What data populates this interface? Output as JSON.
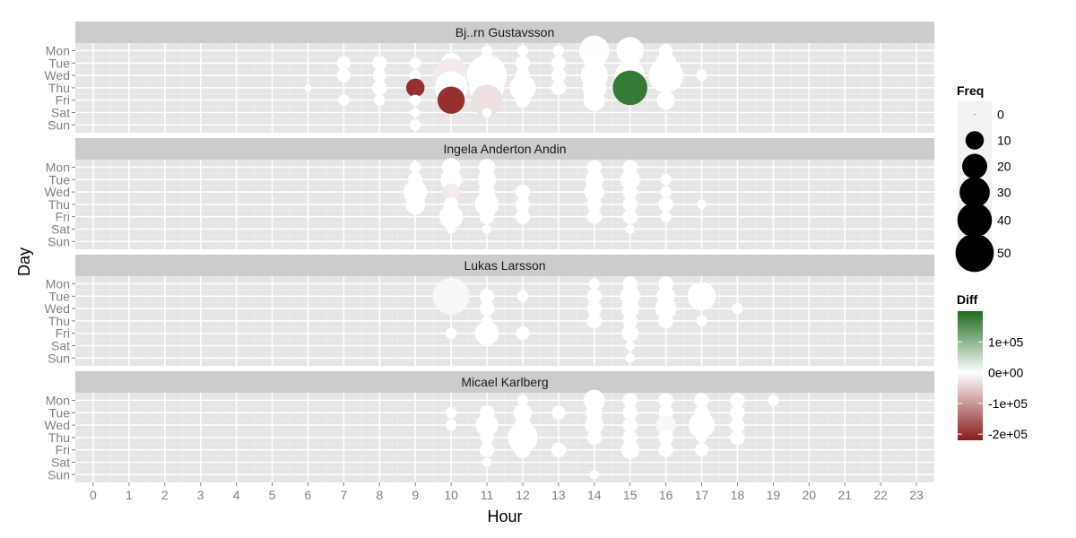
{
  "chart_data": {
    "type": "scatter",
    "title": "",
    "xlabel": "Hour",
    "ylabel": "Day",
    "x_ticks": [
      "0",
      "1",
      "2",
      "3",
      "4",
      "5",
      "6",
      "7",
      "8",
      "9",
      "10",
      "11",
      "12",
      "13",
      "14",
      "15",
      "16",
      "17",
      "18",
      "19",
      "20",
      "21",
      "22",
      "23"
    ],
    "y_ticks": [
      "Mon",
      "Tue",
      "Wed",
      "Thu",
      "Fri",
      "Sat",
      "Sun"
    ],
    "xlim": [
      -0.5,
      23.5
    ],
    "grid": true,
    "legend_position": "right",
    "size_legend": {
      "title": "Freq",
      "values": [
        0,
        10,
        20,
        30,
        40,
        50
      ],
      "labels": [
        "0",
        "10",
        "20",
        "30",
        "40",
        "50"
      ]
    },
    "color_legend": {
      "title": "Diff",
      "ticks": [
        100000,
        0,
        -100000,
        -200000
      ],
      "labels": [
        "1e+05",
        "0e+00",
        "-1e+05",
        "-2e+05"
      ],
      "low_color": "#8b1a1a",
      "mid_color": "#ffffff",
      "high_color": "#1e6b1e",
      "min": -220000,
      "max": 200000
    },
    "panels": [
      {
        "title": "Bj..rn Gustavsson",
        "points": [
          {
            "day": "Mon",
            "hour": 11,
            "freq": 3,
            "diff": 0
          },
          {
            "day": "Mon",
            "hour": 12,
            "freq": 3,
            "diff": 0
          },
          {
            "day": "Mon",
            "hour": 13,
            "freq": 3,
            "diff": 0
          },
          {
            "day": "Mon",
            "hour": 14,
            "freq": 30,
            "diff": 2000
          },
          {
            "day": "Mon",
            "hour": 15,
            "freq": 24,
            "diff": 0
          },
          {
            "day": "Mon",
            "hour": 16,
            "freq": 5,
            "diff": 0
          },
          {
            "day": "Tue",
            "hour": 7,
            "freq": 5,
            "diff": 0
          },
          {
            "day": "Tue",
            "hour": 8,
            "freq": 6,
            "diff": 0
          },
          {
            "day": "Tue",
            "hour": 9,
            "freq": 3,
            "diff": 0
          },
          {
            "day": "Tue",
            "hour": 10,
            "freq": 12,
            "diff": 0
          },
          {
            "day": "Tue",
            "hour": 11,
            "freq": 12,
            "diff": 8000
          },
          {
            "day": "Tue",
            "hour": 12,
            "freq": 6,
            "diff": 0
          },
          {
            "day": "Tue",
            "hour": 13,
            "freq": 6,
            "diff": 0
          },
          {
            "day": "Tue",
            "hour": 14,
            "freq": 12,
            "diff": 0
          },
          {
            "day": "Tue",
            "hour": 15,
            "freq": 10,
            "diff": 0
          },
          {
            "day": "Tue",
            "hour": 16,
            "freq": 14,
            "diff": 0
          },
          {
            "day": "Wed",
            "hour": 7,
            "freq": 5,
            "diff": 0
          },
          {
            "day": "Wed",
            "hour": 8,
            "freq": 5,
            "diff": 0
          },
          {
            "day": "Wed",
            "hour": 9,
            "freq": 3,
            "diff": 0
          },
          {
            "day": "Wed",
            "hour": 10,
            "freq": 40,
            "diff": -20000
          },
          {
            "day": "Wed",
            "hour": 11,
            "freq": 55,
            "diff": 0
          },
          {
            "day": "Wed",
            "hour": 12,
            "freq": 6,
            "diff": 0
          },
          {
            "day": "Wed",
            "hour": 13,
            "freq": 6,
            "diff": 0
          },
          {
            "day": "Wed",
            "hour": 14,
            "freq": 24,
            "diff": 0
          },
          {
            "day": "Wed",
            "hour": 15,
            "freq": 30,
            "diff": 0
          },
          {
            "day": "Wed",
            "hour": 16,
            "freq": 40,
            "diff": 0
          },
          {
            "day": "Wed",
            "hour": 17,
            "freq": 3,
            "diff": 0
          },
          {
            "day": "Thu",
            "hour": 6,
            "freq": 1,
            "diff": 0
          },
          {
            "day": "Thu",
            "hour": 8,
            "freq": 6,
            "diff": 0
          },
          {
            "day": "Thu",
            "hour": 9,
            "freq": 10,
            "diff": -200000
          },
          {
            "day": "Thu",
            "hour": 10,
            "freq": 36,
            "diff": 0
          },
          {
            "day": "Thu",
            "hour": 11,
            "freq": 40,
            "diff": 0
          },
          {
            "day": "Thu",
            "hour": 12,
            "freq": 22,
            "diff": 0
          },
          {
            "day": "Thu",
            "hour": 13,
            "freq": 6,
            "diff": 0
          },
          {
            "day": "Thu",
            "hour": 14,
            "freq": 18,
            "diff": 0
          },
          {
            "day": "Thu",
            "hour": 15,
            "freq": 40,
            "diff": 180000
          },
          {
            "day": "Thu",
            "hour": 16,
            "freq": 3,
            "diff": 0
          },
          {
            "day": "Fri",
            "hour": 7,
            "freq": 3,
            "diff": 0
          },
          {
            "day": "Fri",
            "hour": 8,
            "freq": 3,
            "diff": 0
          },
          {
            "day": "Fri",
            "hour": 9,
            "freq": 3,
            "diff": 0
          },
          {
            "day": "Fri",
            "hour": 10,
            "freq": 24,
            "diff": -200000
          },
          {
            "day": "Fri",
            "hour": 11,
            "freq": 32,
            "diff": -30000
          },
          {
            "day": "Fri",
            "hour": 12,
            "freq": 6,
            "diff": 0
          },
          {
            "day": "Fri",
            "hour": 14,
            "freq": 14,
            "diff": 0
          },
          {
            "day": "Fri",
            "hour": 16,
            "freq": 10,
            "diff": 0
          },
          {
            "day": "Sat",
            "hour": 9,
            "freq": 2,
            "diff": 0
          },
          {
            "day": "Sat",
            "hour": 11,
            "freq": 2,
            "diff": 0
          },
          {
            "day": "Sun",
            "hour": 9,
            "freq": 3,
            "diff": 0
          }
        ]
      },
      {
        "title": "Ingela Anderton Andin",
        "points": [
          {
            "day": "Mon",
            "hour": 9,
            "freq": 3,
            "diff": 0
          },
          {
            "day": "Mon",
            "hour": 10,
            "freq": 10,
            "diff": 0
          },
          {
            "day": "Mon",
            "hour": 11,
            "freq": 8,
            "diff": 0
          },
          {
            "day": "Mon",
            "hour": 14,
            "freq": 6,
            "diff": 0
          },
          {
            "day": "Mon",
            "hour": 15,
            "freq": 6,
            "diff": 0
          },
          {
            "day": "Tue",
            "hour": 9,
            "freq": 6,
            "diff": 0
          },
          {
            "day": "Tue",
            "hour": 10,
            "freq": 14,
            "diff": 0
          },
          {
            "day": "Tue",
            "hour": 11,
            "freq": 10,
            "diff": 0
          },
          {
            "day": "Tue",
            "hour": 14,
            "freq": 10,
            "diff": 0
          },
          {
            "day": "Tue",
            "hour": 15,
            "freq": 12,
            "diff": 0
          },
          {
            "day": "Tue",
            "hour": 16,
            "freq": 3,
            "diff": 0
          },
          {
            "day": "Wed",
            "hour": 9,
            "freq": 18,
            "diff": 0
          },
          {
            "day": "Wed",
            "hour": 10,
            "freq": 8,
            "diff": -20000
          },
          {
            "day": "Wed",
            "hour": 11,
            "freq": 8,
            "diff": 0
          },
          {
            "day": "Wed",
            "hour": 12,
            "freq": 6,
            "diff": 0
          },
          {
            "day": "Wed",
            "hour": 14,
            "freq": 12,
            "diff": 0
          },
          {
            "day": "Wed",
            "hour": 15,
            "freq": 6,
            "diff": 0
          },
          {
            "day": "Wed",
            "hour": 16,
            "freq": 3,
            "diff": 0
          },
          {
            "day": "Thu",
            "hour": 9,
            "freq": 12,
            "diff": 0
          },
          {
            "day": "Thu",
            "hour": 10,
            "freq": 6,
            "diff": 0
          },
          {
            "day": "Thu",
            "hour": 11,
            "freq": 18,
            "diff": 0
          },
          {
            "day": "Thu",
            "hour": 12,
            "freq": 6,
            "diff": 0
          },
          {
            "day": "Thu",
            "hour": 14,
            "freq": 6,
            "diff": 0
          },
          {
            "day": "Thu",
            "hour": 15,
            "freq": 6,
            "diff": 0
          },
          {
            "day": "Thu",
            "hour": 16,
            "freq": 6,
            "diff": 0
          },
          {
            "day": "Thu",
            "hour": 17,
            "freq": 2,
            "diff": 0
          },
          {
            "day": "Fri",
            "hour": 10,
            "freq": 18,
            "diff": 0
          },
          {
            "day": "Fri",
            "hour": 11,
            "freq": 6,
            "diff": 0
          },
          {
            "day": "Fri",
            "hour": 12,
            "freq": 6,
            "diff": 0
          },
          {
            "day": "Fri",
            "hour": 14,
            "freq": 6,
            "diff": 0
          },
          {
            "day": "Fri",
            "hour": 15,
            "freq": 6,
            "diff": 0
          },
          {
            "day": "Fri",
            "hour": 16,
            "freq": 3,
            "diff": 0
          },
          {
            "day": "Sat",
            "hour": 10,
            "freq": 2,
            "diff": 0
          },
          {
            "day": "Sat",
            "hour": 11,
            "freq": 2,
            "diff": 0
          },
          {
            "day": "Sat",
            "hour": 15,
            "freq": 2,
            "diff": 0
          }
        ]
      },
      {
        "title": "Lukas Larsson",
        "points": [
          {
            "day": "Mon",
            "hour": 10,
            "freq": 3,
            "diff": 0
          },
          {
            "day": "Mon",
            "hour": 14,
            "freq": 3,
            "diff": 0
          },
          {
            "day": "Mon",
            "hour": 15,
            "freq": 6,
            "diff": 0
          },
          {
            "day": "Mon",
            "hour": 16,
            "freq": 6,
            "diff": 0
          },
          {
            "day": "Tue",
            "hour": 10,
            "freq": 45,
            "diff": 8000
          },
          {
            "day": "Tue",
            "hour": 11,
            "freq": 6,
            "diff": 0
          },
          {
            "day": "Tue",
            "hour": 12,
            "freq": 3,
            "diff": 0
          },
          {
            "day": "Tue",
            "hour": 14,
            "freq": 6,
            "diff": 0
          },
          {
            "day": "Tue",
            "hour": 15,
            "freq": 12,
            "diff": 0
          },
          {
            "day": "Tue",
            "hour": 16,
            "freq": 10,
            "diff": 0
          },
          {
            "day": "Tue",
            "hour": 17,
            "freq": 26,
            "diff": 0
          },
          {
            "day": "Wed",
            "hour": 11,
            "freq": 6,
            "diff": 0
          },
          {
            "day": "Wed",
            "hour": 14,
            "freq": 6,
            "diff": 0
          },
          {
            "day": "Wed",
            "hour": 15,
            "freq": 10,
            "diff": 0
          },
          {
            "day": "Wed",
            "hour": 16,
            "freq": 14,
            "diff": 0
          },
          {
            "day": "Wed",
            "hour": 18,
            "freq": 3,
            "diff": 0
          },
          {
            "day": "Thu",
            "hour": 11,
            "freq": 3,
            "diff": 0
          },
          {
            "day": "Thu",
            "hour": 14,
            "freq": 6,
            "diff": 0
          },
          {
            "day": "Thu",
            "hour": 15,
            "freq": 6,
            "diff": 0
          },
          {
            "day": "Thu",
            "hour": 16,
            "freq": 6,
            "diff": 0
          },
          {
            "day": "Thu",
            "hour": 17,
            "freq": 3,
            "diff": 0
          },
          {
            "day": "Fri",
            "hour": 10,
            "freq": 3,
            "diff": 0
          },
          {
            "day": "Fri",
            "hour": 11,
            "freq": 18,
            "diff": 0
          },
          {
            "day": "Fri",
            "hour": 12,
            "freq": 5,
            "diff": 0
          },
          {
            "day": "Fri",
            "hour": 15,
            "freq": 8,
            "diff": 0
          },
          {
            "day": "Sat",
            "hour": 15,
            "freq": 2,
            "diff": 0
          },
          {
            "day": "Sun",
            "hour": 15,
            "freq": 2,
            "diff": 0
          }
        ]
      },
      {
        "title": "Micael Karlberg",
        "points": [
          {
            "day": "Mon",
            "hour": 12,
            "freq": 3,
            "diff": 0
          },
          {
            "day": "Mon",
            "hour": 14,
            "freq": 14,
            "diff": 0
          },
          {
            "day": "Mon",
            "hour": 15,
            "freq": 6,
            "diff": 0
          },
          {
            "day": "Mon",
            "hour": 16,
            "freq": 6,
            "diff": 0
          },
          {
            "day": "Mon",
            "hour": 17,
            "freq": 6,
            "diff": 0
          },
          {
            "day": "Mon",
            "hour": 18,
            "freq": 6,
            "diff": 0
          },
          {
            "day": "Mon",
            "hour": 19,
            "freq": 3,
            "diff": 0
          },
          {
            "day": "Tue",
            "hour": 10,
            "freq": 3,
            "diff": 0
          },
          {
            "day": "Tue",
            "hour": 11,
            "freq": 6,
            "diff": 0
          },
          {
            "day": "Tue",
            "hour": 12,
            "freq": 10,
            "diff": 0
          },
          {
            "day": "Tue",
            "hour": 13,
            "freq": 5,
            "diff": 0
          },
          {
            "day": "Tue",
            "hour": 14,
            "freq": 8,
            "diff": 0
          },
          {
            "day": "Tue",
            "hour": 15,
            "freq": 6,
            "diff": 0
          },
          {
            "day": "Tue",
            "hour": 16,
            "freq": 6,
            "diff": 0
          },
          {
            "day": "Tue",
            "hour": 17,
            "freq": 6,
            "diff": 0
          },
          {
            "day": "Tue",
            "hour": 18,
            "freq": 6,
            "diff": 0
          },
          {
            "day": "Wed",
            "hour": 10,
            "freq": 3,
            "diff": 0
          },
          {
            "day": "Wed",
            "hour": 11,
            "freq": 16,
            "diff": 0
          },
          {
            "day": "Wed",
            "hour": 12,
            "freq": 8,
            "diff": 0
          },
          {
            "day": "Wed",
            "hour": 14,
            "freq": 10,
            "diff": 0
          },
          {
            "day": "Wed",
            "hour": 15,
            "freq": 6,
            "diff": 0
          },
          {
            "day": "Wed",
            "hour": 16,
            "freq": 12,
            "diff": 8000
          },
          {
            "day": "Wed",
            "hour": 17,
            "freq": 22,
            "diff": 0
          },
          {
            "day": "Wed",
            "hour": 18,
            "freq": 6,
            "diff": 0
          },
          {
            "day": "Thu",
            "hour": 11,
            "freq": 5,
            "diff": 0
          },
          {
            "day": "Thu",
            "hour": 12,
            "freq": 30,
            "diff": 0
          },
          {
            "day": "Thu",
            "hour": 14,
            "freq": 6,
            "diff": 0
          },
          {
            "day": "Thu",
            "hour": 15,
            "freq": 6,
            "diff": 0
          },
          {
            "day": "Thu",
            "hour": 16,
            "freq": 6,
            "diff": 0
          },
          {
            "day": "Thu",
            "hour": 17,
            "freq": 3,
            "diff": 0
          },
          {
            "day": "Thu",
            "hour": 18,
            "freq": 6,
            "diff": 0
          },
          {
            "day": "Fri",
            "hour": 11,
            "freq": 6,
            "diff": 0
          },
          {
            "day": "Fri",
            "hour": 12,
            "freq": 8,
            "diff": 0
          },
          {
            "day": "Fri",
            "hour": 13,
            "freq": 6,
            "diff": 0
          },
          {
            "day": "Fri",
            "hour": 15,
            "freq": 10,
            "diff": 0
          },
          {
            "day": "Fri",
            "hour": 16,
            "freq": 6,
            "diff": 0
          },
          {
            "day": "Fri",
            "hour": 17,
            "freq": 5,
            "diff": 0
          },
          {
            "day": "Sat",
            "hour": 11,
            "freq": 2,
            "diff": 0
          },
          {
            "day": "Sun",
            "hour": 14,
            "freq": 2,
            "diff": 0
          }
        ]
      }
    ]
  }
}
